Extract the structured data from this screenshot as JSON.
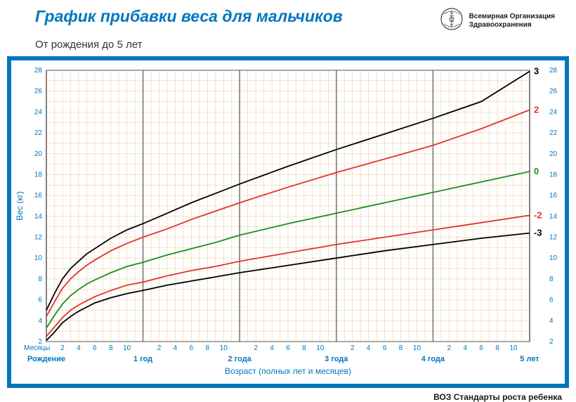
{
  "header": {
    "title": "График прибавки веса для мальчиков",
    "subtitle": "От рождения до 5 лет",
    "org_line1": "Всемирная Организация",
    "org_line2": "Здравоохранения"
  },
  "footer": {
    "text": "ВОЗ Стандарты роста ребенка"
  },
  "chart": {
    "type": "line",
    "background_color": "#ffffff",
    "frame_color": "#0076c0",
    "grid_minor_color": "#f0cfa0",
    "grid_major_color": "#7a7a7a",
    "text_color": "#0076c0",
    "x": {
      "min": 0,
      "max": 60,
      "minor_step": 1,
      "major_ticks": [
        0,
        12,
        24,
        36,
        48,
        60
      ],
      "month_labels": [
        "2",
        "4",
        "6",
        "8",
        "10",
        "2",
        "4",
        "6",
        "8",
        "10",
        "2",
        "4",
        "6",
        "8",
        "10",
        "2",
        "4",
        "6",
        "8",
        "10",
        "2",
        "4",
        "6",
        "8",
        "10"
      ],
      "month_positions": [
        2,
        4,
        6,
        8,
        10,
        14,
        16,
        18,
        20,
        22,
        26,
        28,
        30,
        32,
        34,
        38,
        40,
        42,
        44,
        46,
        50,
        52,
        54,
        56,
        58
      ],
      "year_labels": [
        "Рождение",
        "1 год",
        "2 года",
        "3 года",
        "4 года",
        "5 лет"
      ],
      "title": "Возраст (полных лет и месяцев)",
      "months_label": "Месяцы"
    },
    "y": {
      "min": 2,
      "max": 28,
      "minor_step": 1,
      "tick_step": 2,
      "ticks": [
        2,
        4,
        6,
        8,
        10,
        12,
        14,
        16,
        18,
        20,
        22,
        24,
        26,
        28
      ],
      "title": "Вес (кг)"
    },
    "curves": [
      {
        "z": "3",
        "color": "#000000",
        "label_color": "#000000",
        "points": [
          [
            0,
            5.0
          ],
          [
            1,
            6.6
          ],
          [
            2,
            8.0
          ],
          [
            3,
            9.0
          ],
          [
            4,
            9.7
          ],
          [
            5,
            10.4
          ],
          [
            6,
            10.9
          ],
          [
            8,
            11.9
          ],
          [
            10,
            12.7
          ],
          [
            12,
            13.3
          ],
          [
            15,
            14.3
          ],
          [
            18,
            15.3
          ],
          [
            21,
            16.2
          ],
          [
            24,
            17.1
          ],
          [
            30,
            18.8
          ],
          [
            36,
            20.4
          ],
          [
            42,
            21.9
          ],
          [
            48,
            23.4
          ],
          [
            54,
            25.0
          ],
          [
            60,
            27.9
          ]
        ]
      },
      {
        "z": "2",
        "color": "#e3322b",
        "label_color": "#e3322b",
        "points": [
          [
            0,
            4.4
          ],
          [
            1,
            5.8
          ],
          [
            2,
            7.1
          ],
          [
            3,
            8.0
          ],
          [
            4,
            8.7
          ],
          [
            5,
            9.3
          ],
          [
            6,
            9.8
          ],
          [
            8,
            10.7
          ],
          [
            10,
            11.4
          ],
          [
            12,
            12.0
          ],
          [
            15,
            12.8
          ],
          [
            18,
            13.7
          ],
          [
            21,
            14.5
          ],
          [
            24,
            15.3
          ],
          [
            30,
            16.8
          ],
          [
            36,
            18.2
          ],
          [
            42,
            19.5
          ],
          [
            48,
            20.8
          ],
          [
            54,
            22.4
          ],
          [
            60,
            24.2
          ]
        ]
      },
      {
        "z": "0",
        "color": "#1a8f1a",
        "label_color": "#1a8f1a",
        "points": [
          [
            0,
            3.3
          ],
          [
            1,
            4.5
          ],
          [
            2,
            5.6
          ],
          [
            3,
            6.4
          ],
          [
            4,
            7.0
          ],
          [
            5,
            7.5
          ],
          [
            6,
            7.9
          ],
          [
            8,
            8.6
          ],
          [
            10,
            9.2
          ],
          [
            12,
            9.6
          ],
          [
            15,
            10.3
          ],
          [
            18,
            10.9
          ],
          [
            21,
            11.5
          ],
          [
            24,
            12.2
          ],
          [
            30,
            13.3
          ],
          [
            36,
            14.3
          ],
          [
            42,
            15.3
          ],
          [
            48,
            16.3
          ],
          [
            54,
            17.3
          ],
          [
            60,
            18.3
          ]
        ]
      },
      {
        "z": "-2",
        "color": "#e3322b",
        "label_color": "#e3322b",
        "points": [
          [
            0,
            2.5
          ],
          [
            1,
            3.4
          ],
          [
            2,
            4.3
          ],
          [
            3,
            5.0
          ],
          [
            4,
            5.5
          ],
          [
            5,
            5.9
          ],
          [
            6,
            6.3
          ],
          [
            8,
            6.9
          ],
          [
            10,
            7.4
          ],
          [
            12,
            7.7
          ],
          [
            15,
            8.3
          ],
          [
            18,
            8.8
          ],
          [
            21,
            9.2
          ],
          [
            24,
            9.7
          ],
          [
            30,
            10.5
          ],
          [
            36,
            11.3
          ],
          [
            42,
            12.0
          ],
          [
            48,
            12.7
          ],
          [
            54,
            13.4
          ],
          [
            60,
            14.1
          ]
        ]
      },
      {
        "z": "-3",
        "color": "#000000",
        "label_color": "#000000",
        "points": [
          [
            0,
            2.1
          ],
          [
            1,
            2.9
          ],
          [
            2,
            3.8
          ],
          [
            3,
            4.4
          ],
          [
            4,
            4.9
          ],
          [
            5,
            5.3
          ],
          [
            6,
            5.7
          ],
          [
            8,
            6.2
          ],
          [
            10,
            6.6
          ],
          [
            12,
            6.9
          ],
          [
            15,
            7.4
          ],
          [
            18,
            7.8
          ],
          [
            21,
            8.2
          ],
          [
            24,
            8.6
          ],
          [
            30,
            9.3
          ],
          [
            36,
            10.0
          ],
          [
            42,
            10.7
          ],
          [
            48,
            11.3
          ],
          [
            54,
            11.9
          ],
          [
            60,
            12.4
          ]
        ]
      }
    ]
  }
}
